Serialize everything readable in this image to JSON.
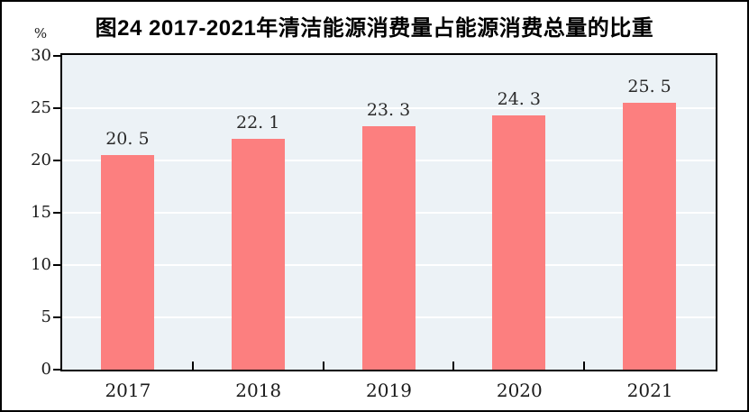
{
  "figure": {
    "title": "图24  2017-2021年清洁能源消费量占能源消费总量的比重",
    "unit_label": "%"
  },
  "chart_data": {
    "type": "bar",
    "title": "图24  2017-2021年清洁能源消费量占能源消费总量的比重",
    "categories": [
      "2017",
      "2018",
      "2019",
      "2020",
      "2021"
    ],
    "values": [
      20.5,
      22.1,
      23.3,
      24.3,
      25.5
    ],
    "value_labels": [
      "20. 5",
      "22. 1",
      "23. 3",
      "24. 3",
      "25. 5"
    ],
    "xlabel": "",
    "ylabel": "%",
    "ylim": [
      0,
      30
    ],
    "yticks": [
      0,
      5,
      10,
      15,
      20,
      25,
      30
    ],
    "grid": true,
    "legend_position": "none",
    "colors": {
      "bar": "#FC7F7F",
      "plot_background": "#ECF2F6",
      "gridline": "#FFFFFF",
      "axis_border": "#000000",
      "text": "#1A1A1A"
    }
  }
}
